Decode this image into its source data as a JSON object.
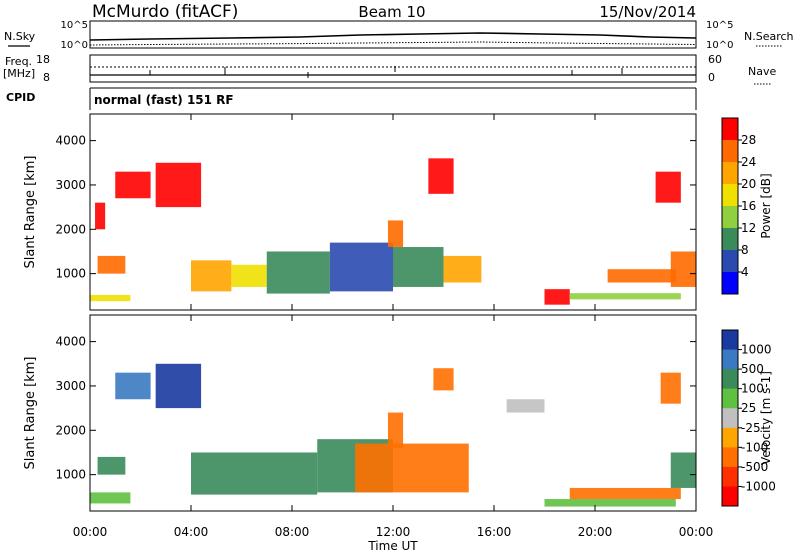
{
  "header": {
    "station": "McMurdo (fitACF)",
    "beam": "Beam 10",
    "date": "15/Nov/2014"
  },
  "top_panels": {
    "nsky_label": "N.Sky",
    "nsearch_label": "N.Search",
    "noise_ticks": [
      "10^5",
      "10^0"
    ],
    "freq_label_line1": "Freq.",
    "freq_label_line2": "[MHz]",
    "freq_ticks": [
      "18",
      "8"
    ],
    "nave_label": "Nave",
    "nave_ticks": [
      "60",
      "0"
    ],
    "cpid_label": "CPID",
    "cpid_text": "normal (fast) 151 RF"
  },
  "chart_data": [
    {
      "type": "heatmap",
      "title": "",
      "quantity": "Power",
      "colorbar_label": "Power [dB]",
      "colorbar_ticks": [
        "28",
        "24",
        "20",
        "16",
        "12",
        "8",
        "4"
      ],
      "colorbar_colors": [
        "#ff0000",
        "#ff6a00",
        "#ffa500",
        "#f0e000",
        "#90d040",
        "#3a8a5a",
        "#2a4ab0",
        "#0000ff"
      ],
      "xlabel": "Time UT",
      "ylabel": "Slant Range [km]",
      "x_ticks": [
        "00:00",
        "04:00",
        "08:00",
        "12:00",
        "16:00",
        "20:00",
        "00:00"
      ],
      "y_ticks": [
        "1000",
        "2000",
        "3000",
        "4000"
      ],
      "xlim": [
        0,
        24
      ],
      "ylim": [
        180,
        4600
      ],
      "regions": [
        {
          "t0": 0.0,
          "t1": 1.6,
          "r0": 380,
          "r1": 520,
          "level": 3
        },
        {
          "t0": 0.3,
          "t1": 1.4,
          "r0": 1000,
          "r1": 1400,
          "level": 1
        },
        {
          "t0": 0.2,
          "t1": 0.6,
          "r0": 2000,
          "r1": 2600,
          "level": 0
        },
        {
          "t0": 1.0,
          "t1": 2.4,
          "r0": 2700,
          "r1": 3300,
          "level": 0
        },
        {
          "t0": 2.6,
          "t1": 4.4,
          "r0": 2500,
          "r1": 3500,
          "level": 0
        },
        {
          "t0": 4.0,
          "t1": 5.6,
          "r0": 600,
          "r1": 1300,
          "level": 2
        },
        {
          "t0": 5.6,
          "t1": 7.0,
          "r0": 700,
          "r1": 1200,
          "level": 3
        },
        {
          "t0": 7.0,
          "t1": 9.5,
          "r0": 550,
          "r1": 1500,
          "level": 5
        },
        {
          "t0": 9.5,
          "t1": 12.0,
          "r0": 600,
          "r1": 1700,
          "level": 6
        },
        {
          "t0": 12.0,
          "t1": 14.0,
          "r0": 700,
          "r1": 1600,
          "level": 5
        },
        {
          "t0": 14.0,
          "t1": 15.5,
          "r0": 800,
          "r1": 1400,
          "level": 2
        },
        {
          "t0": 11.8,
          "t1": 12.4,
          "r0": 1600,
          "r1": 2200,
          "level": 1
        },
        {
          "t0": 13.4,
          "t1": 14.4,
          "r0": 2800,
          "r1": 3600,
          "level": 0
        },
        {
          "t0": 18.0,
          "t1": 19.0,
          "r0": 300,
          "r1": 650,
          "level": 0
        },
        {
          "t0": 19.0,
          "t1": 23.4,
          "r0": 420,
          "r1": 560,
          "level": 4
        },
        {
          "t0": 20.5,
          "t1": 23.2,
          "r0": 800,
          "r1": 1100,
          "level": 1
        },
        {
          "t0": 23.0,
          "t1": 24.0,
          "r0": 700,
          "r1": 1500,
          "level": 1
        },
        {
          "t0": 22.4,
          "t1": 23.4,
          "r0": 2600,
          "r1": 3300,
          "level": 0
        }
      ]
    },
    {
      "type": "heatmap",
      "title": "",
      "quantity": "Velocity",
      "colorbar_label": "Velocity [m s-1]",
      "colorbar_ticks": [
        "1000",
        "500",
        "100",
        "25",
        "-25",
        "-100",
        "-500",
        "-1000"
      ],
      "colorbar_colors": [
        "#1a3aa0",
        "#3a7ac0",
        "#3a8a5a",
        "#60c040",
        "#c0c0c0",
        "#ffa500",
        "#ff7000",
        "#ff3000",
        "#ff0000"
      ],
      "xlabel": "Time UT",
      "ylabel": "Slant Range [km]",
      "x_ticks": [
        "00:00",
        "04:00",
        "08:00",
        "12:00",
        "16:00",
        "20:00",
        "00:00"
      ],
      "y_ticks": [
        "1000",
        "2000",
        "3000",
        "4000"
      ],
      "xlim": [
        0,
        24
      ],
      "ylim": [
        180,
        4600
      ],
      "regions": [
        {
          "t0": 0.0,
          "t1": 1.6,
          "r0": 350,
          "r1": 600,
          "level": 3
        },
        {
          "t0": 0.3,
          "t1": 1.4,
          "r0": 1000,
          "r1": 1400,
          "level": 2
        },
        {
          "t0": 1.0,
          "t1": 2.4,
          "r0": 2700,
          "r1": 3300,
          "level": 1
        },
        {
          "t0": 2.6,
          "t1": 4.4,
          "r0": 2500,
          "r1": 3500,
          "level": 0
        },
        {
          "t0": 4.0,
          "t1": 9.0,
          "r0": 550,
          "r1": 1500,
          "level": 2
        },
        {
          "t0": 9.0,
          "t1": 12.0,
          "r0": 600,
          "r1": 1800,
          "level": 2
        },
        {
          "t0": 10.5,
          "t1": 15.0,
          "r0": 600,
          "r1": 1700,
          "level": 6
        },
        {
          "t0": 11.8,
          "t1": 12.4,
          "r0": 1600,
          "r1": 2400,
          "level": 6
        },
        {
          "t0": 13.6,
          "t1": 14.4,
          "r0": 2900,
          "r1": 3400,
          "level": 6
        },
        {
          "t0": 16.5,
          "t1": 18.0,
          "r0": 2400,
          "r1": 2700,
          "level": 4
        },
        {
          "t0": 18.0,
          "t1": 23.2,
          "r0": 280,
          "r1": 450,
          "level": 3
        },
        {
          "t0": 19.0,
          "t1": 23.4,
          "r0": 450,
          "r1": 700,
          "level": 6
        },
        {
          "t0": 22.6,
          "t1": 23.4,
          "r0": 2600,
          "r1": 3300,
          "level": 6
        },
        {
          "t0": 23.0,
          "t1": 24.0,
          "r0": 700,
          "r1": 1500,
          "level": 2
        }
      ]
    }
  ]
}
